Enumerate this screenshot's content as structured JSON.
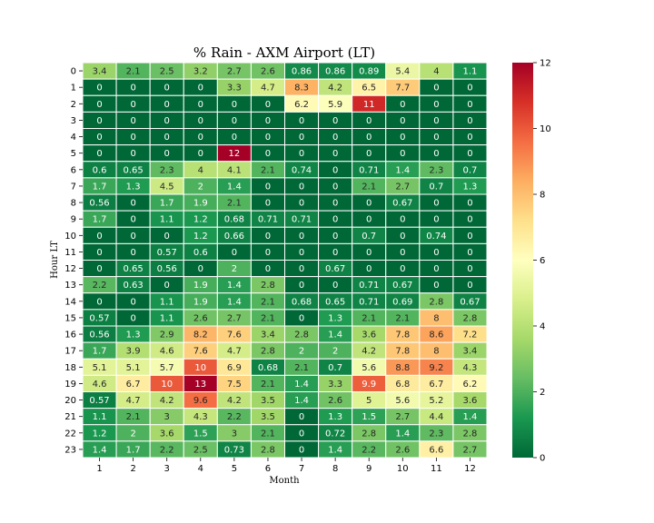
{
  "chart_data": {
    "type": "heatmap",
    "title": "% Rain - AXM Airport (LT)",
    "xlabel": "Month",
    "ylabel": "Hour LT",
    "x_categories": [
      "1",
      "2",
      "3",
      "4",
      "5",
      "6",
      "7",
      "8",
      "9",
      "10",
      "11",
      "12"
    ],
    "y_categories": [
      "0",
      "1",
      "2",
      "3",
      "4",
      "5",
      "6",
      "7",
      "8",
      "9",
      "10",
      "11",
      "12",
      "13",
      "14",
      "15",
      "16",
      "17",
      "18",
      "19",
      "20",
      "21",
      "22",
      "23"
    ],
    "values": [
      [
        3.4,
        2.1,
        2.5,
        3.2,
        2.7,
        2.6,
        0.86,
        0.86,
        0.89,
        5.4,
        4,
        1.1
      ],
      [
        0,
        0,
        0,
        0,
        3.3,
        4.7,
        8.3,
        4.2,
        6.5,
        7.7,
        0,
        0
      ],
      [
        0,
        0,
        0,
        0,
        0,
        0,
        6.2,
        5.9,
        11,
        0,
        0,
        0
      ],
      [
        0,
        0,
        0,
        0,
        0,
        0,
        0,
        0,
        0,
        0,
        0,
        0
      ],
      [
        0,
        0,
        0,
        0,
        0,
        0,
        0,
        0,
        0,
        0,
        0,
        0
      ],
      [
        0,
        0,
        0,
        0,
        12,
        0,
        0,
        0,
        0,
        0,
        0,
        0
      ],
      [
        0.6,
        0.65,
        2.3,
        4,
        4.1,
        2.1,
        0.74,
        0,
        0.71,
        1.4,
        2.3,
        0.7
      ],
      [
        1.7,
        1.3,
        4.5,
        2,
        1.4,
        0,
        0,
        0,
        2.1,
        2.7,
        0.7,
        1.3
      ],
      [
        0.56,
        0,
        1.7,
        1.9,
        2.1,
        0,
        0,
        0,
        0,
        0.67,
        0,
        0
      ],
      [
        1.7,
        0,
        1.1,
        1.2,
        0.68,
        0.71,
        0.71,
        0,
        0,
        0,
        0,
        0
      ],
      [
        0,
        0,
        0,
        1.2,
        0.66,
        0,
        0,
        0,
        0.7,
        0,
        0.74,
        0
      ],
      [
        0,
        0,
        0.57,
        0.6,
        0,
        0,
        0,
        0,
        0,
        0,
        0,
        0
      ],
      [
        0,
        0.65,
        0.56,
        0,
        2,
        0,
        0,
        0.67,
        0,
        0,
        0,
        0
      ],
      [
        2.2,
        0.63,
        0,
        1.9,
        1.4,
        2.8,
        0,
        0,
        0.71,
        0.67,
        0,
        0
      ],
      [
        0,
        0,
        1.1,
        1.9,
        1.4,
        2.1,
        0.68,
        0.65,
        0.71,
        0.69,
        2.8,
        0.67
      ],
      [
        0.57,
        0,
        1.1,
        2.6,
        2.7,
        2.1,
        0,
        1.3,
        2.1,
        2.1,
        8,
        2.8
      ],
      [
        0.56,
        1.3,
        2.9,
        8.2,
        7.6,
        3.4,
        2.8,
        1.4,
        3.6,
        7.8,
        8.6,
        7.2
      ],
      [
        1.7,
        3.9,
        4.6,
        7.6,
        4.7,
        2.8,
        2,
        2,
        4.2,
        7.8,
        8,
        3.4
      ],
      [
        5.1,
        5.1,
        5.7,
        10,
        6.9,
        0.68,
        2.1,
        0.7,
        5.6,
        8.8,
        9.2,
        4.3
      ],
      [
        4.6,
        6.7,
        10,
        13,
        7.5,
        2.1,
        1.4,
        3.3,
        9.9,
        6.8,
        6.7,
        6.2
      ],
      [
        0.57,
        4.7,
        4.2,
        9.6,
        4.2,
        3.5,
        1.4,
        2.6,
        5,
        5.6,
        5.2,
        3.6
      ],
      [
        1.1,
        2.1,
        3,
        4.3,
        2.2,
        3.5,
        0,
        1.3,
        1.5,
        2.7,
        4.4,
        1.4
      ],
      [
        1.2,
        2,
        3.6,
        1.5,
        3,
        2.1,
        0,
        0.72,
        2.8,
        1.4,
        2.3,
        2.8
      ],
      [
        1.4,
        1.7,
        2.2,
        2.5,
        0.73,
        2.8,
        0,
        1.4,
        2.2,
        2.6,
        6.6,
        2.7
      ]
    ],
    "colorbar": {
      "colormap": "RdYlGn_r",
      "vmin": 0,
      "vmax": 12,
      "ticks": [
        "0",
        "2",
        "4",
        "6",
        "8",
        "10",
        "12"
      ]
    }
  }
}
